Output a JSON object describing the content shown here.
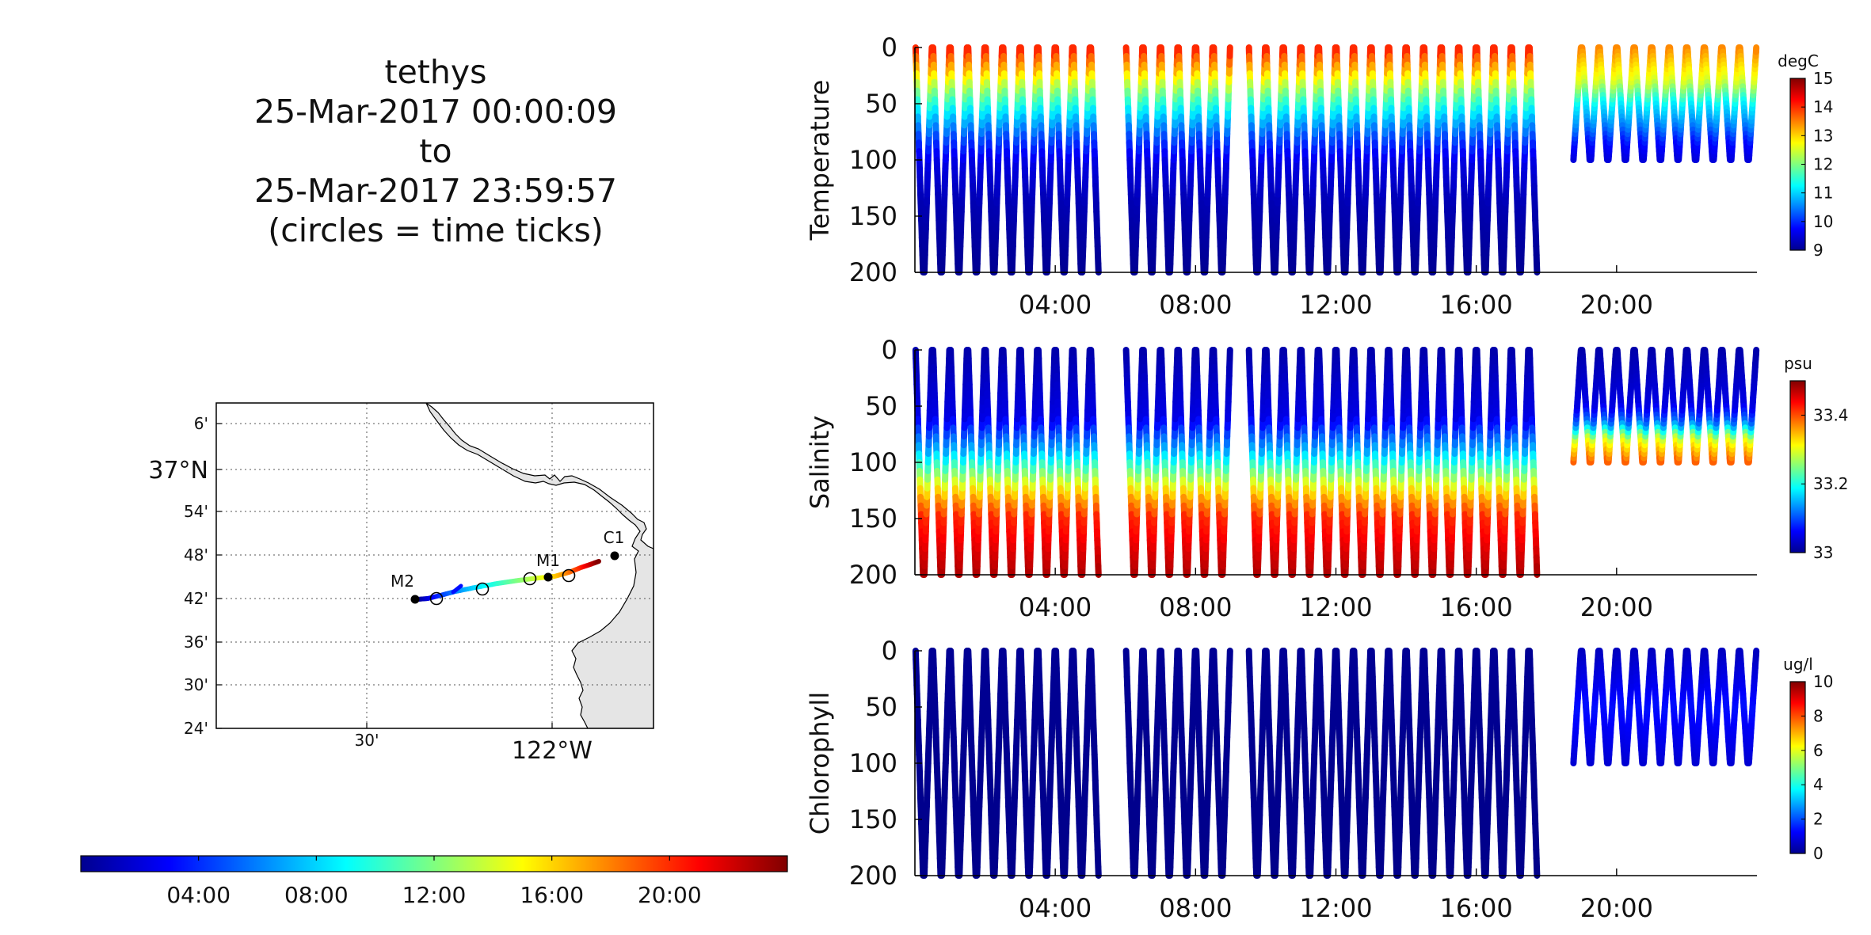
{
  "header": {
    "lines": [
      "tethys",
      "25-Mar-2017 00:00:09",
      "to",
      "25-Mar-2017 23:59:57",
      "(circles = time ticks)"
    ]
  },
  "map": {
    "lat_ticks": [
      "6'",
      "37°N",
      "54'",
      "48'",
      "42'",
      "36'",
      "30'",
      "24'"
    ],
    "lon_ticks": [
      "30'",
      "122°W"
    ],
    "stations": [
      "M2",
      "M1",
      "C1"
    ],
    "land_color": "#e5e5e5"
  },
  "time_colorbar": {
    "ticks": [
      "04:00",
      "08:00",
      "12:00",
      "16:00",
      "20:00"
    ],
    "colormap": "jet"
  },
  "chart_data": [
    {
      "type": "scatter",
      "name_key": "temperature",
      "ylabel": "Temperature",
      "units": "degC",
      "xlim": [
        "00:00",
        "24:00"
      ],
      "ylim": [
        200,
        0
      ],
      "yticks": [
        0,
        50,
        100,
        150,
        200
      ],
      "xticks": [
        "04:00",
        "08:00",
        "12:00",
        "16:00",
        "20:00"
      ],
      "clim": [
        9,
        15
      ],
      "cticks": [
        9,
        10,
        11,
        12,
        13,
        14,
        15
      ],
      "profile_gaps": [
        [
          "05:20",
          "05:55"
        ],
        [
          "09:10",
          "09:30"
        ],
        [
          "17:55",
          "18:45"
        ]
      ],
      "max_depth_before_gap": 200,
      "max_depth_after_gap": 100,
      "depth_profile": [
        [
          0,
          14.2
        ],
        [
          20,
          13.2
        ],
        [
          40,
          12.0
        ],
        [
          60,
          11.0
        ],
        [
          80,
          10.2
        ],
        [
          100,
          9.6
        ],
        [
          140,
          9.3
        ],
        [
          200,
          9.1
        ]
      ],
      "depth_profile_late": [
        [
          0,
          13.5
        ],
        [
          30,
          12.5
        ],
        [
          50,
          11.2
        ],
        [
          70,
          10.5
        ],
        [
          85,
          9.8
        ],
        [
          100,
          9.5
        ]
      ]
    },
    {
      "type": "scatter",
      "name_key": "salinity",
      "ylabel": "Salinity",
      "units": "psu",
      "xlim": [
        "00:00",
        "24:00"
      ],
      "ylim": [
        200,
        0
      ],
      "yticks": [
        0,
        50,
        100,
        150,
        200
      ],
      "xticks": [
        "04:00",
        "08:00",
        "12:00",
        "16:00",
        "20:00"
      ],
      "clim": [
        33.0,
        33.5
      ],
      "cticks": [
        33,
        33.2,
        33.4
      ],
      "profile_gaps": [
        [
          "05:20",
          "05:55"
        ],
        [
          "09:10",
          "09:30"
        ],
        [
          "17:55",
          "18:45"
        ]
      ],
      "max_depth_before_gap": 200,
      "max_depth_after_gap": 100,
      "depth_profile": [
        [
          0,
          33.02
        ],
        [
          60,
          33.05
        ],
        [
          90,
          33.15
        ],
        [
          110,
          33.25
        ],
        [
          130,
          33.35
        ],
        [
          150,
          33.42
        ],
        [
          200,
          33.48
        ]
      ],
      "depth_profile_late": [
        [
          0,
          33.02
        ],
        [
          50,
          33.05
        ],
        [
          65,
          33.12
        ],
        [
          80,
          33.3
        ],
        [
          100,
          33.4
        ]
      ]
    },
    {
      "type": "scatter",
      "name_key": "chlorophyll",
      "ylabel": "Chlorophyll",
      "units": "ug/l",
      "xlim": [
        "00:00",
        "24:00"
      ],
      "ylim": [
        200,
        0
      ],
      "yticks": [
        0,
        50,
        100,
        150,
        200
      ],
      "xticks": [
        "04:00",
        "08:00",
        "12:00",
        "16:00",
        "20:00"
      ],
      "clim": [
        0,
        10
      ],
      "cticks": [
        0,
        2,
        4,
        6,
        8,
        10
      ],
      "profile_gaps": [
        [
          "05:20",
          "05:55"
        ],
        [
          "09:10",
          "09:30"
        ],
        [
          "17:55",
          "18:45"
        ]
      ],
      "max_depth_before_gap": 200,
      "max_depth_after_gap": 100,
      "depth_profile": [
        [
          0,
          0.2
        ],
        [
          200,
          0.1
        ]
      ],
      "depth_profile_late": [
        [
          0,
          0.6
        ],
        [
          50,
          1.4
        ],
        [
          100,
          0.8
        ]
      ]
    }
  ]
}
